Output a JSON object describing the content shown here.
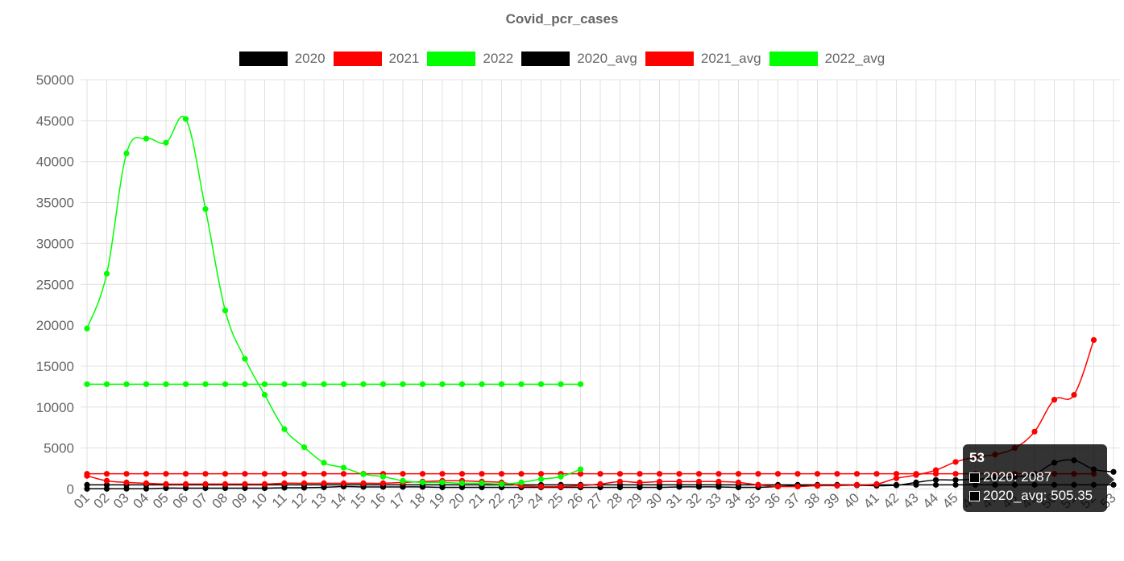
{
  "chart_data": {
    "type": "line",
    "title": "Covid_pcr_cases",
    "categories": [
      "01",
      "02",
      "03",
      "04",
      "05",
      "06",
      "07",
      "08",
      "09",
      "10",
      "11",
      "12",
      "13",
      "14",
      "15",
      "16",
      "17",
      "18",
      "19",
      "20",
      "21",
      "22",
      "23",
      "24",
      "25",
      "26",
      "27",
      "28",
      "29",
      "30",
      "31",
      "32",
      "33",
      "34",
      "35",
      "36",
      "37",
      "38",
      "39",
      "40",
      "41",
      "42",
      "43",
      "44",
      "45",
      "46",
      "47",
      "48",
      "49",
      "50",
      "51",
      "52",
      "53"
    ],
    "ylim": [
      0,
      50000
    ],
    "yticks": [
      0,
      5000,
      10000,
      15000,
      20000,
      25000,
      30000,
      35000,
      40000,
      45000,
      50000
    ],
    "grid": true,
    "legend_position": "top",
    "series": [
      {
        "name": "2020",
        "color": "#000000",
        "values": [
          20,
          20,
          30,
          30,
          100,
          100,
          100,
          100,
          100,
          100,
          150,
          150,
          200,
          300,
          250,
          250,
          250,
          250,
          200,
          200,
          200,
          200,
          200,
          200,
          200,
          200,
          200,
          200,
          200,
          200,
          250,
          250,
          250,
          200,
          200,
          300,
          400,
          400,
          450,
          450,
          400,
          450,
          800,
          1100,
          1100,
          1200,
          1300,
          1500,
          1800,
          3200,
          3500,
          2400,
          2087
        ]
      },
      {
        "name": "2021",
        "color": "#ff0000",
        "values": [
          1600,
          1000,
          800,
          700,
          600,
          600,
          600,
          600,
          600,
          600,
          700,
          700,
          700,
          700,
          700,
          700,
          800,
          900,
          1000,
          1000,
          900,
          800,
          400,
          300,
          300,
          400,
          600,
          900,
          800,
          900,
          900,
          900,
          900,
          800,
          500,
          300,
          300,
          400,
          400,
          500,
          600,
          1300,
          1700,
          2300,
          3300,
          3900,
          4200,
          5000,
          7000,
          10900,
          11500,
          18200,
          null
        ]
      },
      {
        "name": "2022",
        "color": "#00ff00",
        "values": [
          19600,
          26300,
          41000,
          42800,
          42300,
          45200,
          34200,
          21800,
          15900,
          11500,
          7300,
          5100,
          3200,
          2600,
          1800,
          1500,
          1000,
          800,
          800,
          700,
          700,
          600,
          800,
          1200,
          1500,
          2400,
          null,
          null,
          null,
          null,
          null,
          null,
          null,
          null,
          null,
          null,
          null,
          null,
          null,
          null,
          null,
          null,
          null,
          null,
          null,
          null,
          null,
          null,
          null,
          null,
          null,
          null,
          null
        ]
      },
      {
        "name": "2020_avg",
        "color": "#000000",
        "values": [
          505.35,
          505.35,
          505.35,
          505.35,
          505.35,
          505.35,
          505.35,
          505.35,
          505.35,
          505.35,
          505.35,
          505.35,
          505.35,
          505.35,
          505.35,
          505.35,
          505.35,
          505.35,
          505.35,
          505.35,
          505.35,
          505.35,
          505.35,
          505.35,
          505.35,
          505.35,
          505.35,
          505.35,
          505.35,
          505.35,
          505.35,
          505.35,
          505.35,
          505.35,
          505.35,
          505.35,
          505.35,
          505.35,
          505.35,
          505.35,
          505.35,
          505.35,
          505.35,
          505.35,
          505.35,
          505.35,
          505.35,
          505.35,
          505.35,
          505.35,
          505.35,
          505.35,
          505.35
        ]
      },
      {
        "name": "2021_avg",
        "color": "#ff0000",
        "values": [
          1850,
          1850,
          1850,
          1850,
          1850,
          1850,
          1850,
          1850,
          1850,
          1850,
          1850,
          1850,
          1850,
          1850,
          1850,
          1850,
          1850,
          1850,
          1850,
          1850,
          1850,
          1850,
          1850,
          1850,
          1850,
          1850,
          1850,
          1850,
          1850,
          1850,
          1850,
          1850,
          1850,
          1850,
          1850,
          1850,
          1850,
          1850,
          1850,
          1850,
          1850,
          1850,
          1850,
          1850,
          1850,
          1850,
          1850,
          1850,
          1850,
          1850,
          1850,
          1850,
          null
        ]
      },
      {
        "name": "2022_avg",
        "color": "#00ff00",
        "values": [
          12800,
          12800,
          12800,
          12800,
          12800,
          12800,
          12800,
          12800,
          12800,
          12800,
          12800,
          12800,
          12800,
          12800,
          12800,
          12800,
          12800,
          12800,
          12800,
          12800,
          12800,
          12800,
          12800,
          12800,
          12800,
          12800,
          null,
          null,
          null,
          null,
          null,
          null,
          null,
          null,
          null,
          null,
          null,
          null,
          null,
          null,
          null,
          null,
          null,
          null,
          null,
          null,
          null,
          null,
          null,
          null,
          null,
          null,
          null
        ]
      }
    ]
  },
  "tooltip": {
    "title": "53",
    "rows": [
      {
        "label": "2020: 2087",
        "color": "#000000"
      },
      {
        "label": "2020_avg: 505.35",
        "color": "#000000"
      }
    ]
  }
}
